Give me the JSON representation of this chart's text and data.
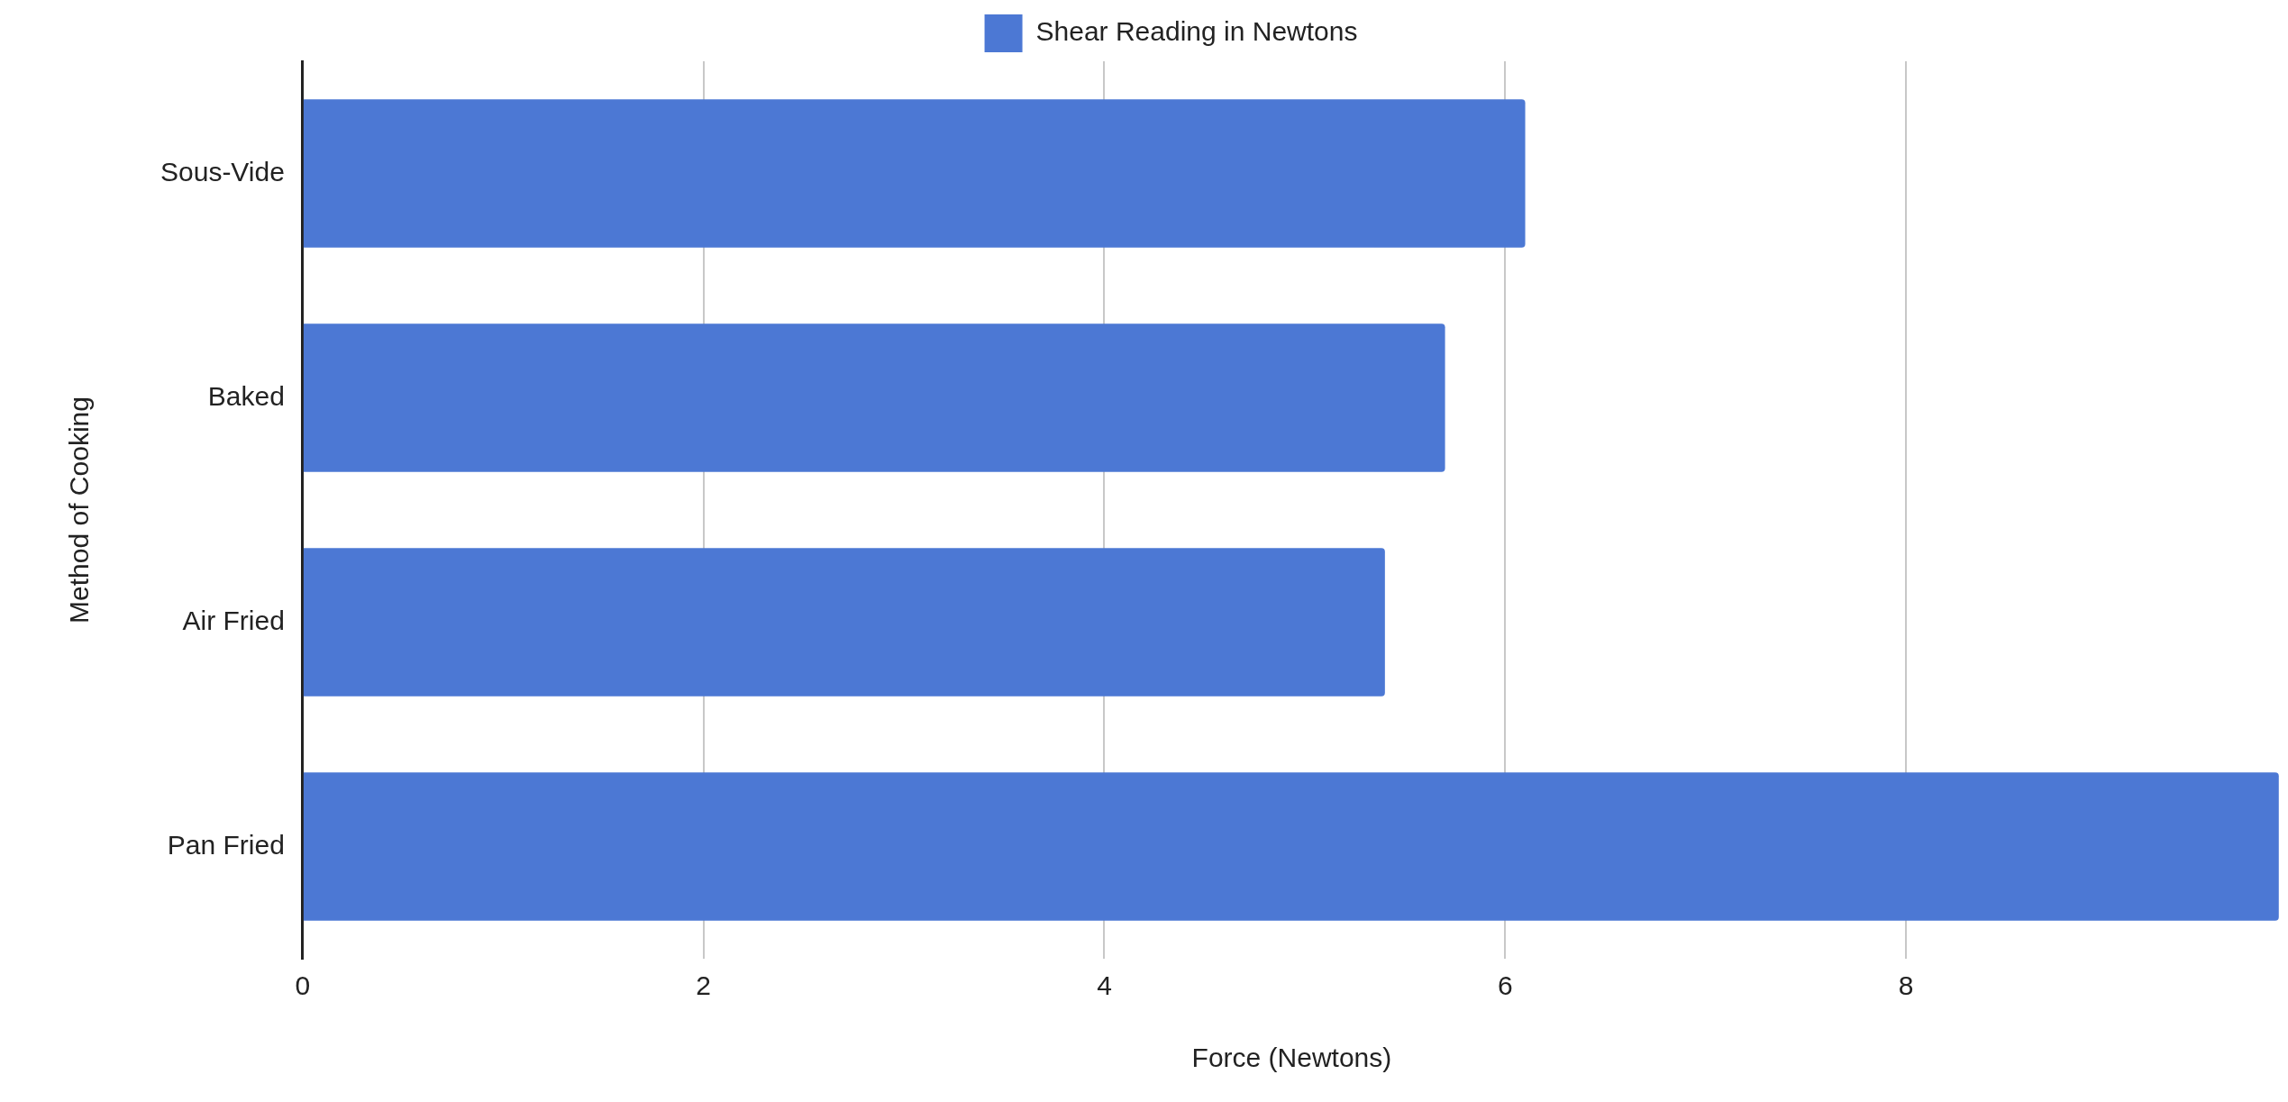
{
  "chart_data": {
    "type": "bar",
    "orientation": "horizontal",
    "xlabel": "Force (Newtons)",
    "ylabel": "Method of Cooking",
    "categories": [
      "Sous-Vide",
      "Baked",
      "Air Fried",
      "Pan Fried"
    ],
    "series": [
      {
        "name": "Shear Reading in Newtons",
        "color": "#4c78d4",
        "values": [
          6.1,
          5.7,
          5.4,
          9.86
        ]
      }
    ],
    "xlim": [
      0,
      9.87
    ],
    "xticks": [
      0,
      2,
      4,
      6,
      8
    ],
    "grid": "x",
    "legend": "top"
  }
}
